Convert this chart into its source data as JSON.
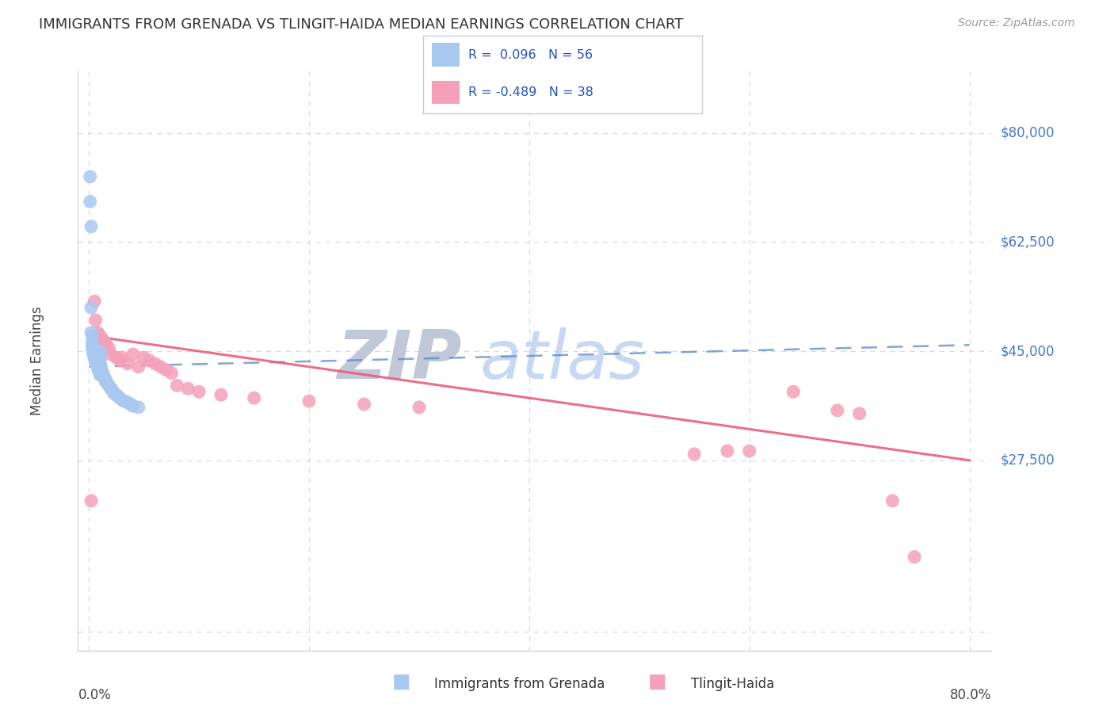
{
  "title": "IMMIGRANTS FROM GRENADA VS TLINGIT-HAIDA MEDIAN EARNINGS CORRELATION CHART",
  "source": "Source: ZipAtlas.com",
  "ylabel": "Median Earnings",
  "legend1_label": "Immigrants from Grenada",
  "legend2_label": "Tlingit-Haida",
  "R1": 0.096,
  "N1": 56,
  "R2": -0.489,
  "N2": 38,
  "color_blue": "#a8c8f0",
  "color_pink": "#f4a0b8",
  "trendline1_color": "#5588cc",
  "trendline2_color": "#e8607a",
  "watermark_zip_color": "#c0c8d8",
  "watermark_atlas_color": "#a8c8f0",
  "background_color": "#ffffff",
  "grid_color": "#d8d8e8",
  "ymin": 0,
  "ymax": 85000,
  "xmin": 0.0,
  "xmax": 0.8,
  "ytick_positions": [
    0,
    27500,
    45000,
    62500,
    80000
  ],
  "ytick_labels": [
    "",
    "$27,500",
    "$45,000",
    "$62,500",
    "$80,000"
  ],
  "xtick_positions": [
    0.0,
    0.2,
    0.4,
    0.6,
    0.8
  ],
  "blue_x": [
    0.001,
    0.001,
    0.002,
    0.002,
    0.002,
    0.003,
    0.003,
    0.003,
    0.003,
    0.004,
    0.004,
    0.004,
    0.005,
    0.005,
    0.005,
    0.006,
    0.006,
    0.007,
    0.007,
    0.008,
    0.008,
    0.009,
    0.009,
    0.01,
    0.01,
    0.01,
    0.01,
    0.01,
    0.01,
    0.01,
    0.011,
    0.011,
    0.012,
    0.012,
    0.013,
    0.013,
    0.014,
    0.015,
    0.015,
    0.016,
    0.017,
    0.018,
    0.019,
    0.02,
    0.021,
    0.022,
    0.023,
    0.025,
    0.026,
    0.028,
    0.03,
    0.032,
    0.035,
    0.038,
    0.04,
    0.045
  ],
  "blue_y": [
    73000,
    69000,
    65000,
    52000,
    48000,
    47500,
    46500,
    46000,
    45500,
    45000,
    44800,
    44500,
    44300,
    44000,
    43800,
    43500,
    43200,
    43000,
    42800,
    42500,
    42300,
    42000,
    41800,
    41500,
    41200,
    45000,
    44500,
    44000,
    43500,
    43000,
    42500,
    42000,
    41800,
    41500,
    41200,
    41000,
    40800,
    40500,
    40200,
    40000,
    39800,
    39500,
    39200,
    39000,
    38800,
    38500,
    38200,
    38000,
    37800,
    37500,
    37200,
    37000,
    36800,
    36500,
    36200,
    36000
  ],
  "pink_x": [
    0.002,
    0.005,
    0.006,
    0.008,
    0.01,
    0.012,
    0.014,
    0.016,
    0.018,
    0.02,
    0.025,
    0.028,
    0.03,
    0.035,
    0.04,
    0.045,
    0.05,
    0.055,
    0.06,
    0.065,
    0.07,
    0.075,
    0.08,
    0.09,
    0.1,
    0.12,
    0.15,
    0.2,
    0.25,
    0.3,
    0.55,
    0.58,
    0.6,
    0.64,
    0.68,
    0.7,
    0.73,
    0.75
  ],
  "pink_y": [
    21000,
    53000,
    50000,
    48000,
    47500,
    47000,
    46500,
    46000,
    45500,
    44500,
    44000,
    43500,
    44000,
    43000,
    44500,
    42500,
    44000,
    43500,
    43000,
    42500,
    42000,
    41500,
    39500,
    39000,
    38500,
    38000,
    37500,
    37000,
    36500,
    36000,
    28500,
    29000,
    29000,
    38500,
    35500,
    35000,
    21000,
    12000
  ],
  "trendline1_x": [
    0.0,
    0.8
  ],
  "trendline1_y": [
    42500,
    46000
  ],
  "trendline2_x": [
    0.0,
    0.8
  ],
  "trendline2_y": [
    47500,
    27500
  ]
}
